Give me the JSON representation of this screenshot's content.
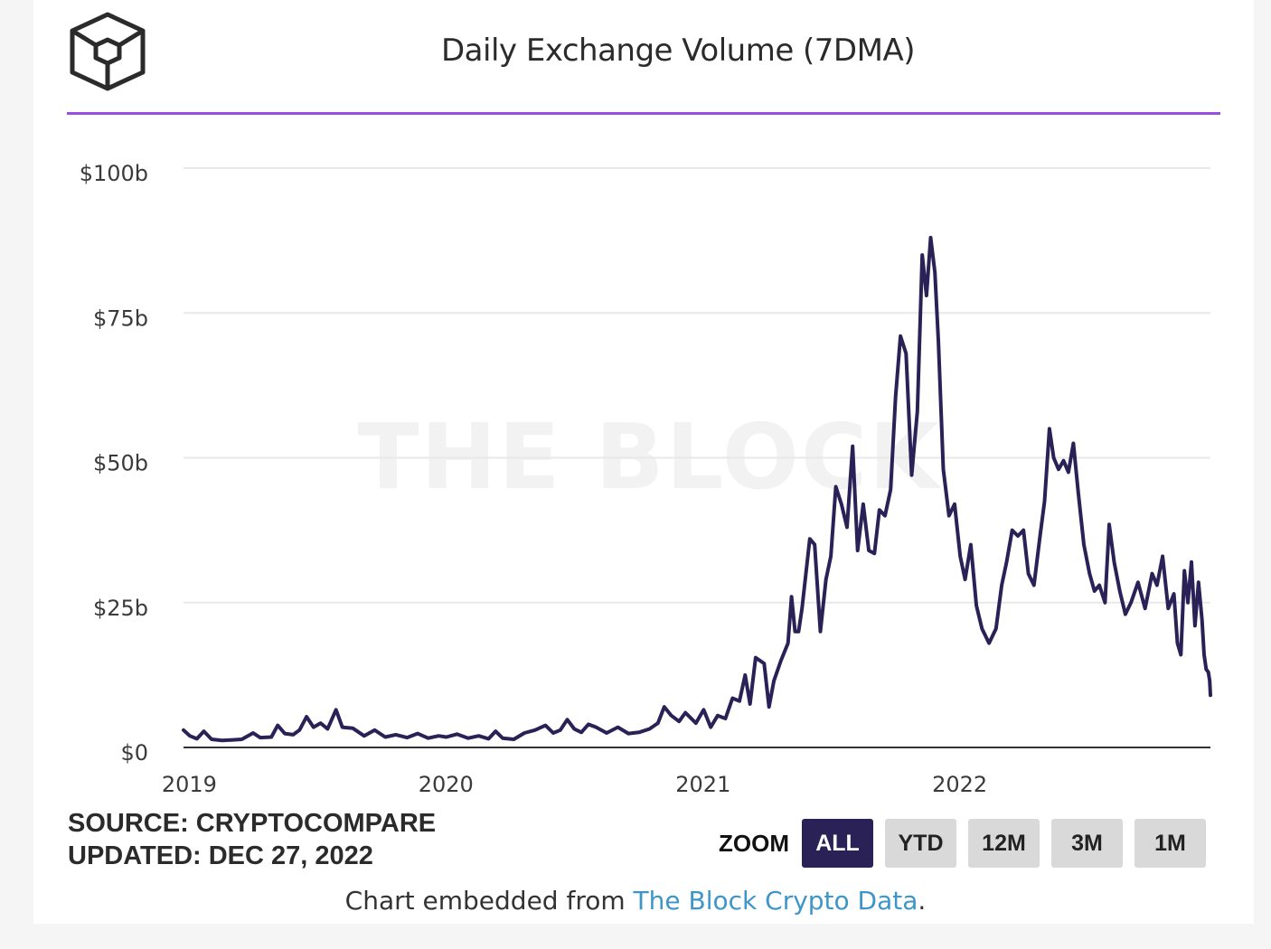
{
  "header": {
    "title": "Daily Exchange Volume (7DMA)",
    "logo_icon": "the-block-cube-logo"
  },
  "source": {
    "line1": "SOURCE: CRYPTOCOMPARE",
    "line2": "UPDATED: DEC 27, 2022"
  },
  "zoom": {
    "label": "ZOOM",
    "buttons": [
      "ALL",
      "YTD",
      "12M",
      "3M",
      "1M"
    ],
    "active": "ALL"
  },
  "footer": {
    "prefix": "Chart embedded from ",
    "link_text": "The Block Crypto Data",
    "suffix": "."
  },
  "watermark": "THE BLOCK",
  "colors": {
    "line": "#2a2157",
    "accent_rule": "#9b4ddb",
    "link": "#3d96c9"
  },
  "chart_data": {
    "type": "line",
    "title": "Daily Exchange Volume (7DMA)",
    "xlabel": "",
    "ylabel": "",
    "y_unit": "USD billions",
    "ylim": [
      0,
      100
    ],
    "xlim": [
      "2018-12-27",
      "2022-12-27"
    ],
    "yticks": [
      {
        "value": 0,
        "label": "$0"
      },
      {
        "value": 25,
        "label": "$25b"
      },
      {
        "value": 50,
        "label": "$50b"
      },
      {
        "value": 75,
        "label": "$75b"
      },
      {
        "value": 100,
        "label": "$100b"
      }
    ],
    "xticks": [
      {
        "value": "2019-01-01",
        "label": "2019"
      },
      {
        "value": "2020-01-01",
        "label": "2020"
      },
      {
        "value": "2021-01-01",
        "label": "2021"
      },
      {
        "value": "2022-01-01",
        "label": "2022"
      }
    ],
    "grid": true,
    "series": [
      {
        "points": [
          [
            "2018-12-27",
            3.0
          ],
          [
            "2019-01-05",
            2.0
          ],
          [
            "2019-01-15",
            1.5
          ],
          [
            "2019-01-25",
            2.8
          ],
          [
            "2019-02-05",
            1.4
          ],
          [
            "2019-02-20",
            1.2
          ],
          [
            "2019-03-05",
            1.3
          ],
          [
            "2019-03-20",
            1.4
          ],
          [
            "2019-04-05",
            2.5
          ],
          [
            "2019-04-15",
            1.7
          ],
          [
            "2019-05-01",
            1.8
          ],
          [
            "2019-05-10",
            3.8
          ],
          [
            "2019-05-20",
            2.4
          ],
          [
            "2019-06-01",
            2.2
          ],
          [
            "2019-06-10",
            3.0
          ],
          [
            "2019-06-20",
            5.3
          ],
          [
            "2019-06-30",
            3.5
          ],
          [
            "2019-07-10",
            4.2
          ],
          [
            "2019-07-20",
            3.2
          ],
          [
            "2019-08-01",
            6.5
          ],
          [
            "2019-08-10",
            3.5
          ],
          [
            "2019-08-25",
            3.3
          ],
          [
            "2019-09-10",
            2.0
          ],
          [
            "2019-09-25",
            3.0
          ],
          [
            "2019-10-10",
            1.8
          ],
          [
            "2019-10-25",
            2.2
          ],
          [
            "2019-11-10",
            1.7
          ],
          [
            "2019-11-25",
            2.4
          ],
          [
            "2019-12-10",
            1.6
          ],
          [
            "2019-12-25",
            2.0
          ],
          [
            "2020-01-05",
            1.8
          ],
          [
            "2020-01-20",
            2.3
          ],
          [
            "2020-02-05",
            1.6
          ],
          [
            "2020-02-20",
            2.0
          ],
          [
            "2020-03-05",
            1.5
          ],
          [
            "2020-03-15",
            2.8
          ],
          [
            "2020-03-25",
            1.6
          ],
          [
            "2020-04-10",
            1.4
          ],
          [
            "2020-04-25",
            2.5
          ],
          [
            "2020-05-10",
            3.0
          ],
          [
            "2020-05-25",
            3.8
          ],
          [
            "2020-06-05",
            2.5
          ],
          [
            "2020-06-15",
            3.0
          ],
          [
            "2020-06-25",
            4.8
          ],
          [
            "2020-07-05",
            3.2
          ],
          [
            "2020-07-15",
            2.6
          ],
          [
            "2020-07-25",
            4.0
          ],
          [
            "2020-08-05",
            3.5
          ],
          [
            "2020-08-20",
            2.5
          ],
          [
            "2020-09-05",
            3.5
          ],
          [
            "2020-09-20",
            2.4
          ],
          [
            "2020-10-05",
            2.6
          ],
          [
            "2020-10-20",
            3.2
          ],
          [
            "2020-11-01",
            4.2
          ],
          [
            "2020-11-10",
            7.0
          ],
          [
            "2020-11-20",
            5.5
          ],
          [
            "2020-12-01",
            4.5
          ],
          [
            "2020-12-10",
            6.0
          ],
          [
            "2020-12-25",
            4.2
          ],
          [
            "2021-01-05",
            6.5
          ],
          [
            "2021-01-15",
            3.5
          ],
          [
            "2021-01-25",
            5.5
          ],
          [
            "2021-02-05",
            5.0
          ],
          [
            "2021-02-15",
            8.5
          ],
          [
            "2021-02-25",
            8.0
          ],
          [
            "2021-03-05",
            12.5
          ],
          [
            "2021-03-12",
            7.5
          ],
          [
            "2021-03-20",
            15.5
          ],
          [
            "2021-04-01",
            14.5
          ],
          [
            "2021-04-08",
            7.0
          ],
          [
            "2021-04-15",
            11.5
          ],
          [
            "2021-04-25",
            15.0
          ],
          [
            "2021-05-05",
            18.0
          ],
          [
            "2021-05-10",
            26.0
          ],
          [
            "2021-05-15",
            20.0
          ],
          [
            "2021-05-20",
            20.0
          ],
          [
            "2021-05-25",
            24.0
          ],
          [
            "2021-06-05",
            36.0
          ],
          [
            "2021-06-12",
            35.0
          ],
          [
            "2021-06-20",
            20.0
          ],
          [
            "2021-06-28",
            29.0
          ],
          [
            "2021-07-05",
            33.0
          ],
          [
            "2021-07-12",
            45.0
          ],
          [
            "2021-07-20",
            42.0
          ],
          [
            "2021-07-28",
            38.0
          ],
          [
            "2021-08-05",
            52.0
          ],
          [
            "2021-08-12",
            34.0
          ],
          [
            "2021-08-20",
            42.0
          ],
          [
            "2021-08-28",
            34.0
          ],
          [
            "2021-09-05",
            33.5
          ],
          [
            "2021-09-12",
            41.0
          ],
          [
            "2021-09-20",
            40.0
          ],
          [
            "2021-09-28",
            44.5
          ],
          [
            "2021-10-05",
            60.5
          ],
          [
            "2021-10-12",
            71.0
          ],
          [
            "2021-10-20",
            68.0
          ],
          [
            "2021-10-28",
            47.0
          ],
          [
            "2021-11-05",
            58.0
          ],
          [
            "2021-11-12",
            85.0
          ],
          [
            "2021-11-18",
            78.0
          ],
          [
            "2021-11-24",
            88.0
          ],
          [
            "2021-11-30",
            82.0
          ],
          [
            "2021-12-05",
            70.0
          ],
          [
            "2021-12-12",
            48.0
          ],
          [
            "2021-12-20",
            40.0
          ],
          [
            "2021-12-28",
            42.0
          ],
          [
            "2022-01-05",
            33.0
          ],
          [
            "2022-01-12",
            29.0
          ],
          [
            "2022-01-20",
            35.0
          ],
          [
            "2022-01-28",
            24.5
          ],
          [
            "2022-02-05",
            20.5
          ],
          [
            "2022-02-15",
            18.0
          ],
          [
            "2022-02-25",
            20.5
          ],
          [
            "2022-03-05",
            28.0
          ],
          [
            "2022-03-12",
            32.0
          ],
          [
            "2022-03-20",
            37.5
          ],
          [
            "2022-03-28",
            36.5
          ],
          [
            "2022-04-05",
            37.5
          ],
          [
            "2022-04-12",
            30.0
          ],
          [
            "2022-04-20",
            28.0
          ],
          [
            "2022-04-28",
            36.0
          ],
          [
            "2022-05-05",
            42.5
          ],
          [
            "2022-05-12",
            55.0
          ],
          [
            "2022-05-18",
            50.0
          ],
          [
            "2022-05-25",
            48.0
          ],
          [
            "2022-06-01",
            49.5
          ],
          [
            "2022-06-08",
            47.5
          ],
          [
            "2022-06-15",
            52.5
          ],
          [
            "2022-06-22",
            44.0
          ],
          [
            "2022-06-30",
            35.0
          ],
          [
            "2022-07-08",
            30.0
          ],
          [
            "2022-07-15",
            27.0
          ],
          [
            "2022-07-22",
            28.0
          ],
          [
            "2022-07-30",
            25.0
          ],
          [
            "2022-08-05",
            38.5
          ],
          [
            "2022-08-12",
            32.0
          ],
          [
            "2022-08-20",
            27.0
          ],
          [
            "2022-08-28",
            23.0
          ],
          [
            "2022-09-05",
            25.0
          ],
          [
            "2022-09-15",
            28.5
          ],
          [
            "2022-09-25",
            24.0
          ],
          [
            "2022-10-05",
            30.0
          ],
          [
            "2022-10-12",
            28.0
          ],
          [
            "2022-10-20",
            33.0
          ],
          [
            "2022-10-28",
            24.0
          ],
          [
            "2022-11-05",
            26.5
          ],
          [
            "2022-11-10",
            18.0
          ],
          [
            "2022-11-15",
            16.0
          ],
          [
            "2022-11-20",
            30.5
          ],
          [
            "2022-11-25",
            25.0
          ],
          [
            "2022-11-30",
            32.0
          ],
          [
            "2022-12-05",
            21.0
          ],
          [
            "2022-12-10",
            28.5
          ],
          [
            "2022-12-15",
            22.0
          ],
          [
            "2022-12-18",
            16.0
          ],
          [
            "2022-12-21",
            13.5
          ],
          [
            "2022-12-24",
            13.0
          ],
          [
            "2022-12-26",
            11.5
          ],
          [
            "2022-12-27",
            9.0
          ]
        ]
      }
    ]
  }
}
